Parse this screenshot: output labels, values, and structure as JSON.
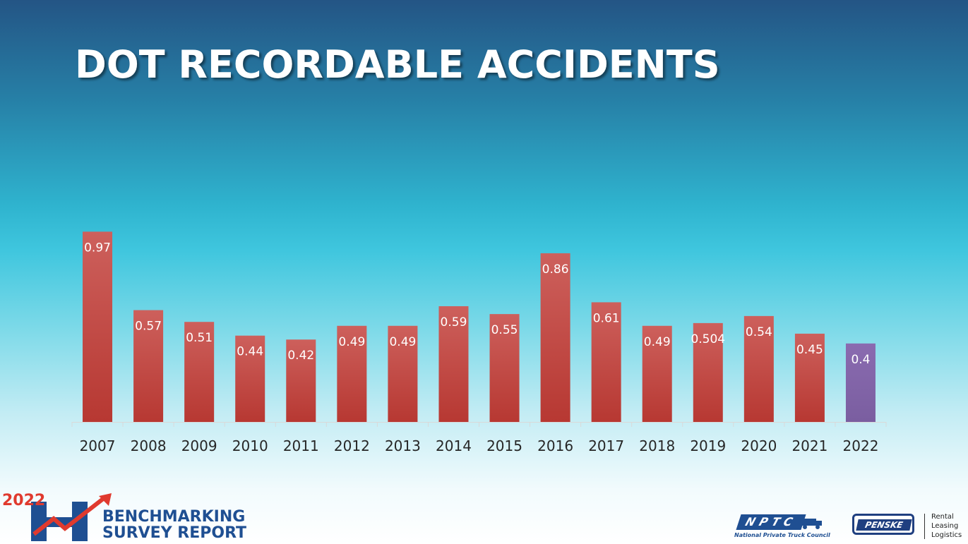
{
  "slide": {
    "title": "DOT RECORDABLE ACCIDENTS"
  },
  "colors": {
    "bar_default": "#c0504d",
    "bar_highlight": "#8064a2",
    "title": "#ffffff",
    "axis_text": "#262626"
  },
  "chart_data": {
    "type": "bar",
    "title": "",
    "xlabel": "",
    "ylabel": "",
    "ylim": [
      0,
      1.0
    ],
    "grid": false,
    "legend": "none",
    "categories": [
      "2007",
      "2008",
      "2009",
      "2010",
      "2011",
      "2012",
      "2013",
      "2014",
      "2015",
      "2016",
      "2017",
      "2018",
      "2019",
      "2020",
      "2021",
      "2022"
    ],
    "values": [
      0.97,
      0.57,
      0.51,
      0.44,
      0.42,
      0.49,
      0.49,
      0.59,
      0.55,
      0.86,
      0.61,
      0.49,
      0.504,
      0.54,
      0.45,
      0.4
    ],
    "data_labels": [
      "0.97",
      "0.57",
      "0.51",
      "0.44",
      "0.42",
      "0.49",
      "0.49",
      "0.59",
      "0.55",
      "0.86",
      "0.61",
      "0.49",
      "0.504",
      "0.54",
      "0.45",
      "0.4"
    ],
    "highlight_category": "2022"
  },
  "footer": {
    "benchmark_year": "2022",
    "benchmark_line1": "BENCHMARKING",
    "benchmark_line2": "SURVEY REPORT",
    "nptc_word": "NPTC",
    "nptc_tagline": "National Private Truck Council",
    "penske_word": "PENSKE",
    "penske_tag1": "Rental",
    "penske_tag2": "Leasing",
    "penske_tag3": "Logistics"
  }
}
